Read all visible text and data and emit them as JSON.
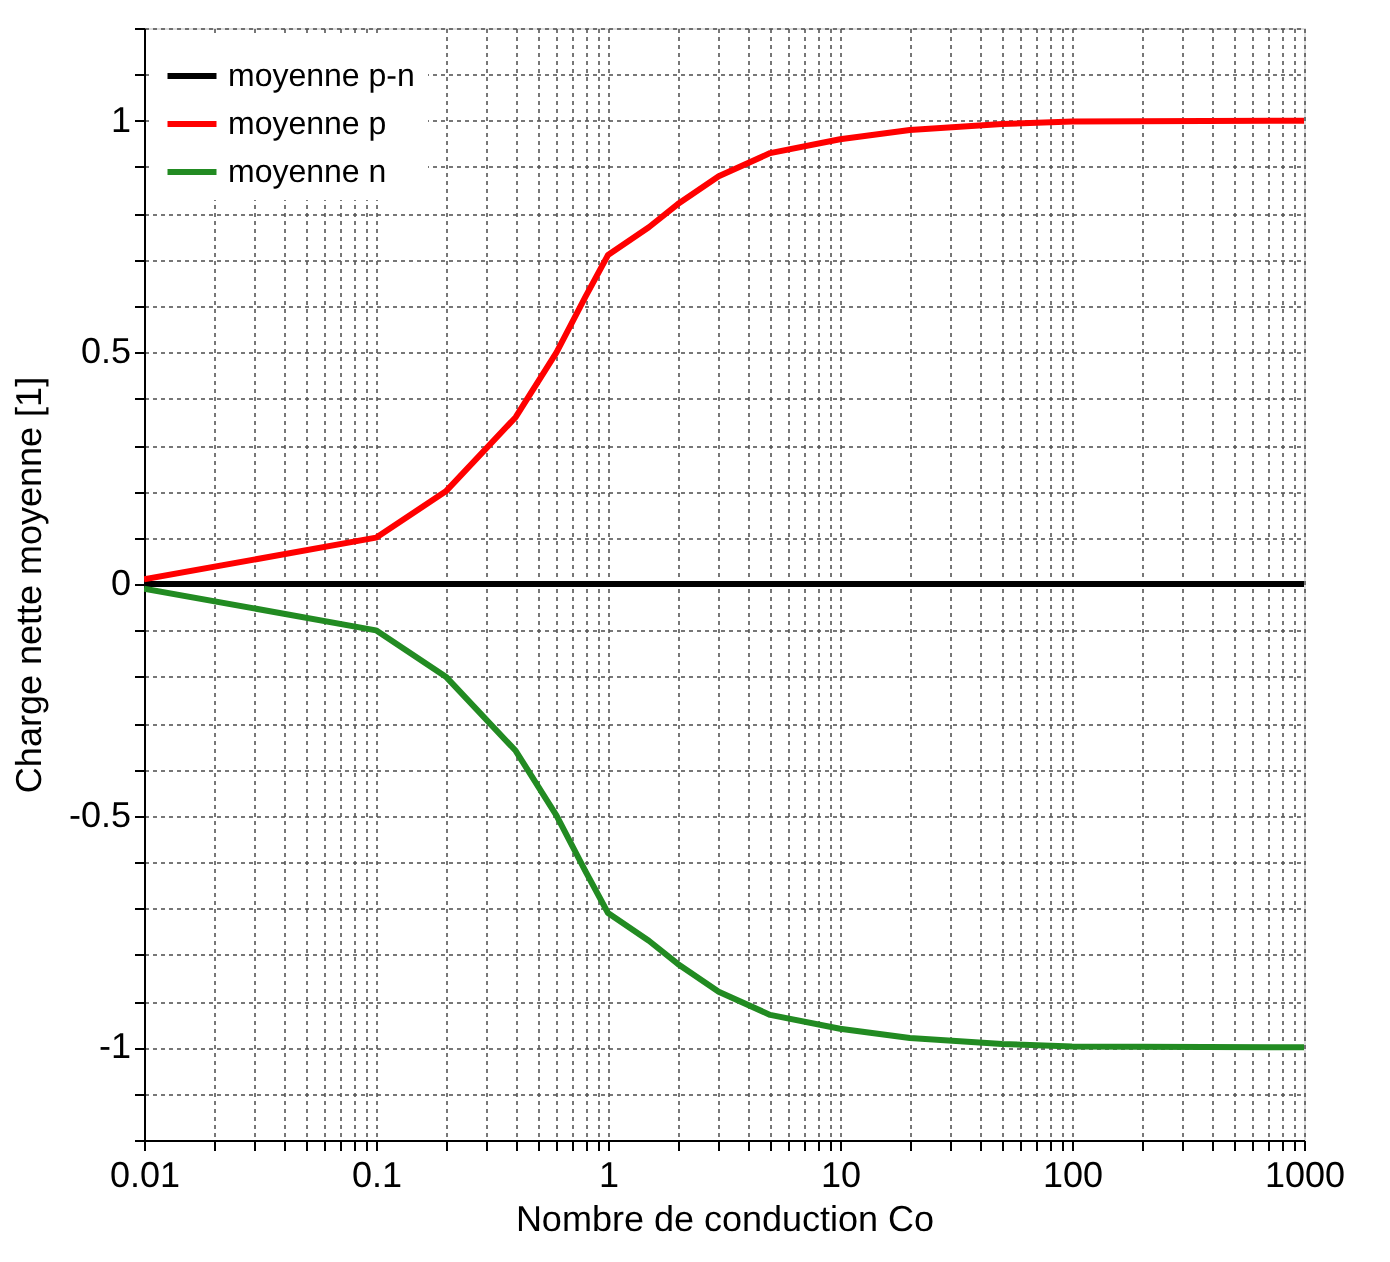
{
  "chart_data": {
    "type": "line",
    "xlabel": "Nombre de conduction Co",
    "ylabel": "Charge nette moyenne [1]",
    "log": "x",
    "grid": true,
    "legend": "top left",
    "line_style": "solid",
    "marker": "none",
    "xlim": [
      0.01,
      1000
    ],
    "ylim": [
      -1.2,
      1.2
    ],
    "xticks": [
      0.01,
      {
        "value": 0.02,
        "label": null
      },
      {
        "value": 0.03,
        "label": null
      },
      {
        "value": 0.04,
        "label": null
      },
      {
        "value": 0.05,
        "label": null
      },
      {
        "value": 0.06,
        "label": null
      },
      {
        "value": 0.07,
        "label": null
      },
      {
        "value": 0.08,
        "label": null
      },
      {
        "value": 0.09,
        "label": null
      },
      0.1,
      {
        "value": 0.2,
        "label": null
      },
      {
        "value": 0.3,
        "label": null
      },
      {
        "value": 0.4,
        "label": null
      },
      {
        "value": 0.5,
        "label": null
      },
      {
        "value": 0.6,
        "label": null
      },
      {
        "value": 0.7,
        "label": null
      },
      {
        "value": 0.8,
        "label": null
      },
      {
        "value": 0.9,
        "label": null
      },
      1,
      {
        "value": 2,
        "label": null
      },
      {
        "value": 3,
        "label": null
      },
      {
        "value": 4,
        "label": null
      },
      {
        "value": 5,
        "label": null
      },
      {
        "value": 6,
        "label": null
      },
      {
        "value": 7,
        "label": null
      },
      {
        "value": 8,
        "label": null
      },
      {
        "value": 9,
        "label": null
      },
      10,
      {
        "value": 20,
        "label": null
      },
      {
        "value": 30,
        "label": null
      },
      {
        "value": 40,
        "label": null
      },
      {
        "value": 50,
        "label": null
      },
      {
        "value": 60,
        "label": null
      },
      {
        "value": 70,
        "label": null
      },
      {
        "value": 80,
        "label": null
      },
      {
        "value": 90,
        "label": null
      },
      100,
      {
        "value": 200,
        "label": null
      },
      {
        "value": 300,
        "label": null
      },
      {
        "value": 400,
        "label": null
      },
      {
        "value": 500,
        "label": null
      },
      {
        "value": 600,
        "label": null
      },
      {
        "value": 700,
        "label": null
      },
      {
        "value": 800,
        "label": null
      },
      {
        "value": 900,
        "label": null
      },
      1000
    ],
    "yticks": [
      {
        "value": -1.2,
        "label": null
      },
      {
        "value": -1.1,
        "label": null
      },
      -1,
      {
        "value": -0.9,
        "label": null
      },
      {
        "value": -0.8,
        "label": null
      },
      {
        "value": -0.7,
        "label": null
      },
      {
        "value": -0.6,
        "label": null
      },
      -0.5,
      {
        "value": -0.4,
        "label": null
      },
      {
        "value": -0.3,
        "label": null
      },
      {
        "value": -0.2,
        "label": null
      },
      {
        "value": -0.1,
        "label": null
      },
      0,
      {
        "value": 0.1,
        "label": null
      },
      {
        "value": 0.2,
        "label": null
      },
      {
        "value": 0.3,
        "label": null
      },
      {
        "value": 0.4,
        "label": null
      },
      0.5,
      {
        "value": 0.6,
        "label": null
      },
      {
        "value": 0.7,
        "label": null
      },
      {
        "value": 0.8,
        "label": null
      },
      {
        "value": 0.9,
        "label": null
      },
      1,
      {
        "value": 1.1,
        "label": null
      },
      {
        "value": 1.2,
        "label": null
      }
    ],
    "series": [
      {
        "name": "moyenne p-n",
        "color": "#000000",
        "x": [
          0.01,
          1000
        ],
        "values": [
          0,
          0
        ]
      },
      {
        "name": "moyenne p",
        "color": "#ff0000",
        "x": [
          0.01,
          0.1,
          0.2,
          0.4,
          0.6,
          0.8,
          1,
          1.5,
          2,
          3,
          5,
          10,
          20,
          50,
          100,
          1000
        ],
        "values": [
          0.01,
          0.1,
          0.2,
          0.36,
          0.5,
          0.62,
          0.71,
          0.77,
          0.82,
          0.88,
          0.93,
          0.96,
          0.98,
          0.993,
          0.998,
          1
        ]
      },
      {
        "name": "moyenne n",
        "color": "#228b22",
        "x": [
          0.01,
          0.1,
          0.2,
          0.4,
          0.6,
          0.8,
          1,
          1.5,
          2,
          3,
          5,
          10,
          20,
          50,
          100,
          1000
        ],
        "values": [
          -0.01,
          -0.1,
          -0.2,
          -0.36,
          -0.5,
          -0.62,
          -0.71,
          -0.77,
          -0.82,
          -0.88,
          -0.93,
          -0.96,
          -0.98,
          -0.993,
          -0.998,
          -1
        ]
      }
    ]
  }
}
